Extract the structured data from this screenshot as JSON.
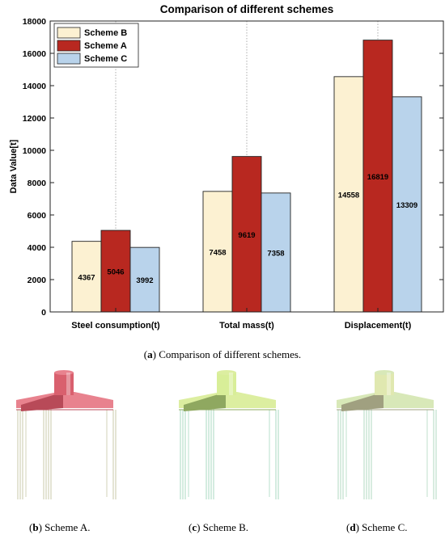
{
  "chart_data": {
    "type": "bar",
    "title": "Comparison of different schemes",
    "xlabel": "",
    "ylabel": "Data Value[t]",
    "ylim": [
      0,
      18000
    ],
    "yticks": [
      0,
      2000,
      4000,
      6000,
      8000,
      10000,
      12000,
      14000,
      16000,
      18000
    ],
    "categories": [
      "Steel consumption(t)",
      "Total mass(t)",
      "Displacement(t)"
    ],
    "series": [
      {
        "name": "Scheme B",
        "color": "#fcf1d2",
        "values": [
          4367,
          7458,
          14558
        ]
      },
      {
        "name": "Scheme A",
        "color": "#b82820",
        "values": [
          5046,
          9619,
          16819
        ]
      },
      {
        "name": "Scheme C",
        "color": "#b9d3eb",
        "values": [
          3992,
          7358,
          13309
        ]
      }
    ],
    "grid": "vertical dotted at categories",
    "legend": "top-left"
  },
  "captions": {
    "a": {
      "label": "a",
      "text": " Comparison of different schemes."
    },
    "b": {
      "label": "b",
      "text": " Scheme A."
    },
    "c": {
      "label": "c",
      "text": " Scheme B."
    },
    "d": {
      "label": "d",
      "text": " Scheme C."
    }
  },
  "models": {
    "a": {
      "color_top": "#e8828e",
      "color_side": "#b84a58",
      "color_cyl": "#d9606e",
      "leg_color": "#c8c8a8"
    },
    "b": {
      "color_top": "#dceea0",
      "color_side": "#8fa860",
      "color_cyl": "#d8ee98",
      "leg_color": "#a8d8c0"
    },
    "c": {
      "color_top": "#d8e8b8",
      "color_side": "#a0a080",
      "color_cyl": "#e0e8b0",
      "leg_color": "#b0d8c0"
    }
  }
}
